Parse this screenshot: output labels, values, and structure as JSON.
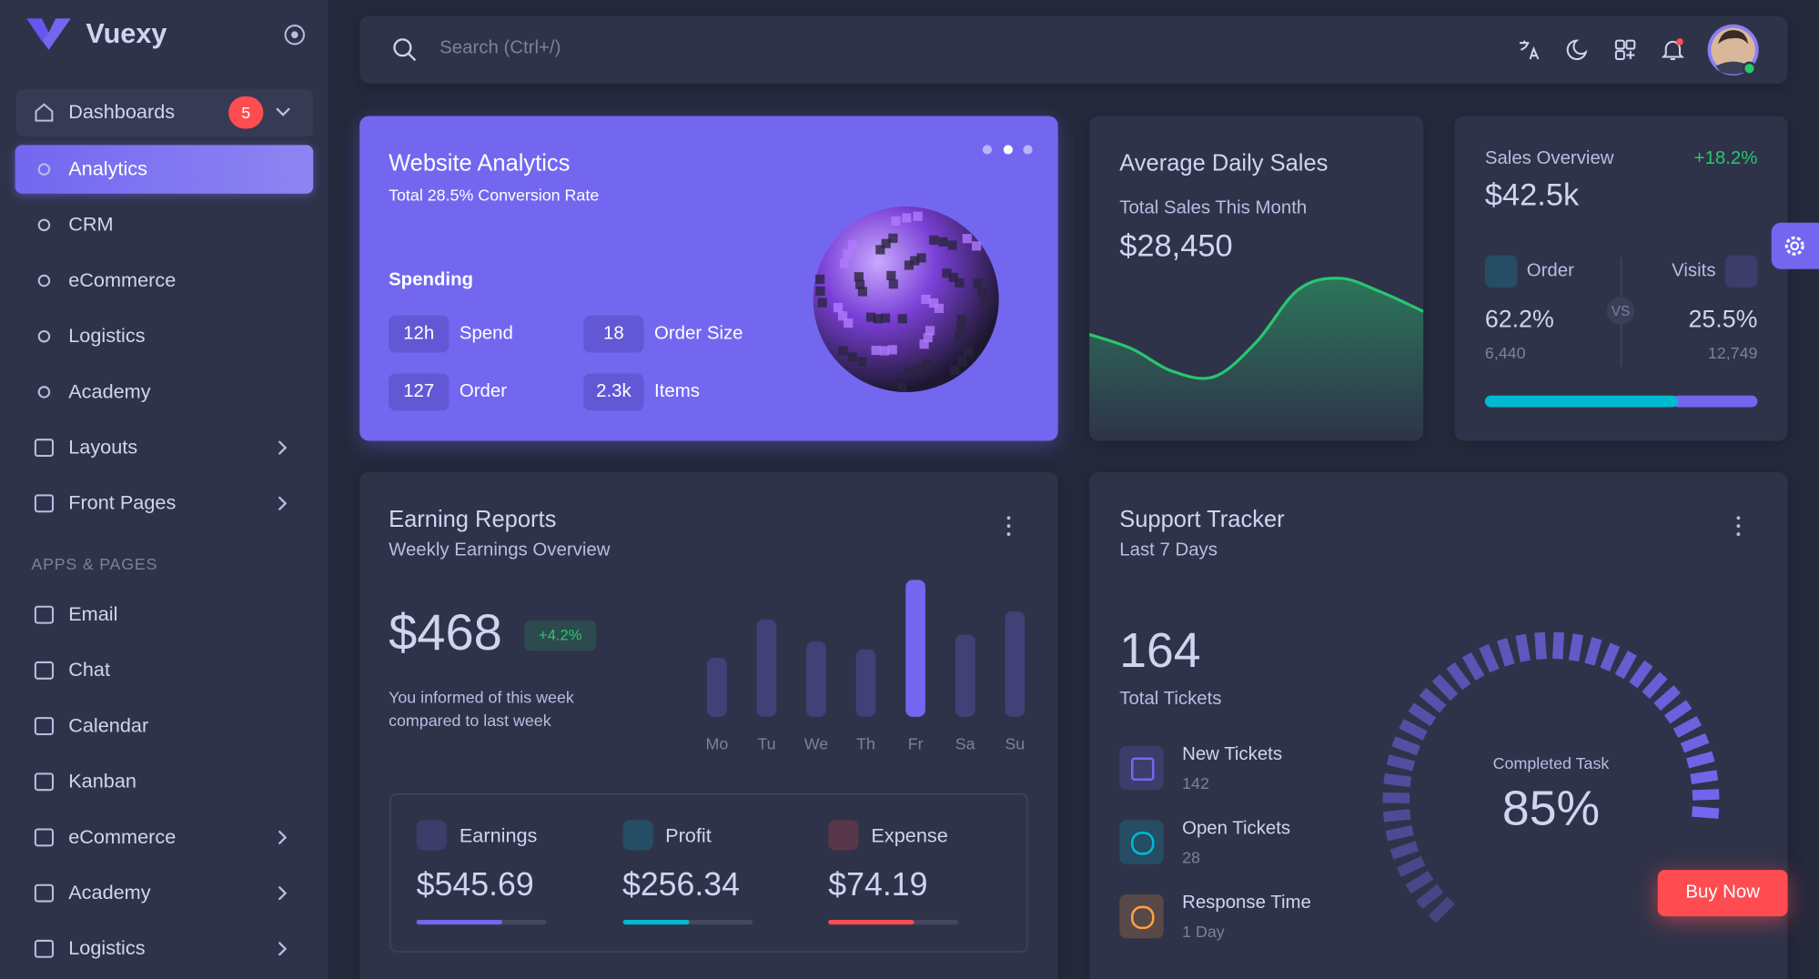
{
  "sidebar": {
    "brand": "Vuexy",
    "dashboards": {
      "label": "Dashboards",
      "badge": "5",
      "items": [
        "Analytics",
        "CRM",
        "eCommerce",
        "Logistics",
        "Academy"
      ]
    },
    "menu": [
      "Layouts",
      "Front Pages"
    ],
    "section": "APPS & PAGES",
    "apps": [
      "Email",
      "Chat",
      "Calendar",
      "Kanban",
      "eCommerce",
      "Academy",
      "Logistics"
    ]
  },
  "topbar": {
    "search": "Search (Ctrl+/)"
  },
  "website_analytics": {
    "title": "Website Analytics",
    "subtitle": "Total 28.5% Conversion Rate",
    "section": "Spending",
    "stats": [
      {
        "value": "12h",
        "label": "Spend"
      },
      {
        "value": "18",
        "label": "Order Size"
      },
      {
        "value": "127",
        "label": "Order"
      },
      {
        "value": "2.3k",
        "label": "Items"
      }
    ]
  },
  "daily_sales": {
    "title": "Average Daily Sales",
    "subtitle": "Total Sales This Month",
    "amount": "$28,450",
    "trend": {
      "values": [
        47,
        36,
        18,
        14,
        41,
        82,
        91,
        80,
        65
      ],
      "ylim": [
        0,
        100
      ],
      "color": "#28c76f"
    }
  },
  "sales_overview": {
    "title": "Sales Overview",
    "change": "+18.2%",
    "amount": "$42.5k",
    "versus": "VS",
    "order": {
      "label": "Order",
      "value": 62.2,
      "value_label": "62.2%",
      "count": "6,440",
      "color": "#00bad1"
    },
    "visits": {
      "label": "Visits",
      "value": 25.5,
      "value_label": "25.5%",
      "count": "12,749",
      "color": "#7367f0"
    }
  },
  "earning_reports": {
    "title": "Earning Reports",
    "subtitle": "Weekly Earnings Overview",
    "amount": "$468",
    "change": "+4.2%",
    "note": "You informed of this week compared to last week",
    "chart": {
      "categories": [
        "Mo",
        "Tu",
        "We",
        "Th",
        "Fr",
        "Sa",
        "Su"
      ],
      "values": [
        51,
        84,
        65,
        58,
        118,
        71,
        91
      ],
      "ylim": [
        0,
        120
      ],
      "color": "#7367f0"
    },
    "stats": [
      {
        "label": "Earnings",
        "amount": "$545.69",
        "progress": 66,
        "color": "#7367f0"
      },
      {
        "label": "Profit",
        "amount": "$256.34",
        "progress": 51,
        "color": "#00bad1"
      },
      {
        "label": "Expense",
        "amount": "$74.19",
        "progress": 66,
        "color": "#ff4c51"
      }
    ]
  },
  "support_tracker": {
    "title": "Support Tracker",
    "subtitle": "Last 7 Days",
    "total": "164",
    "total_label": "Total Tickets",
    "tickets": [
      {
        "label": "New Tickets",
        "value": "142",
        "color": "#7367f0"
      },
      {
        "label": "Open Tickets",
        "value": "28",
        "color": "#00bad1"
      },
      {
        "label": "Response Time",
        "value": "1 Day",
        "color": "#ff9f43"
      }
    ],
    "gauge": {
      "label": "Completed Task",
      "value": 85,
      "value_label": "85%",
      "color": "#7367f0"
    }
  },
  "buy_now": "Buy Now"
}
